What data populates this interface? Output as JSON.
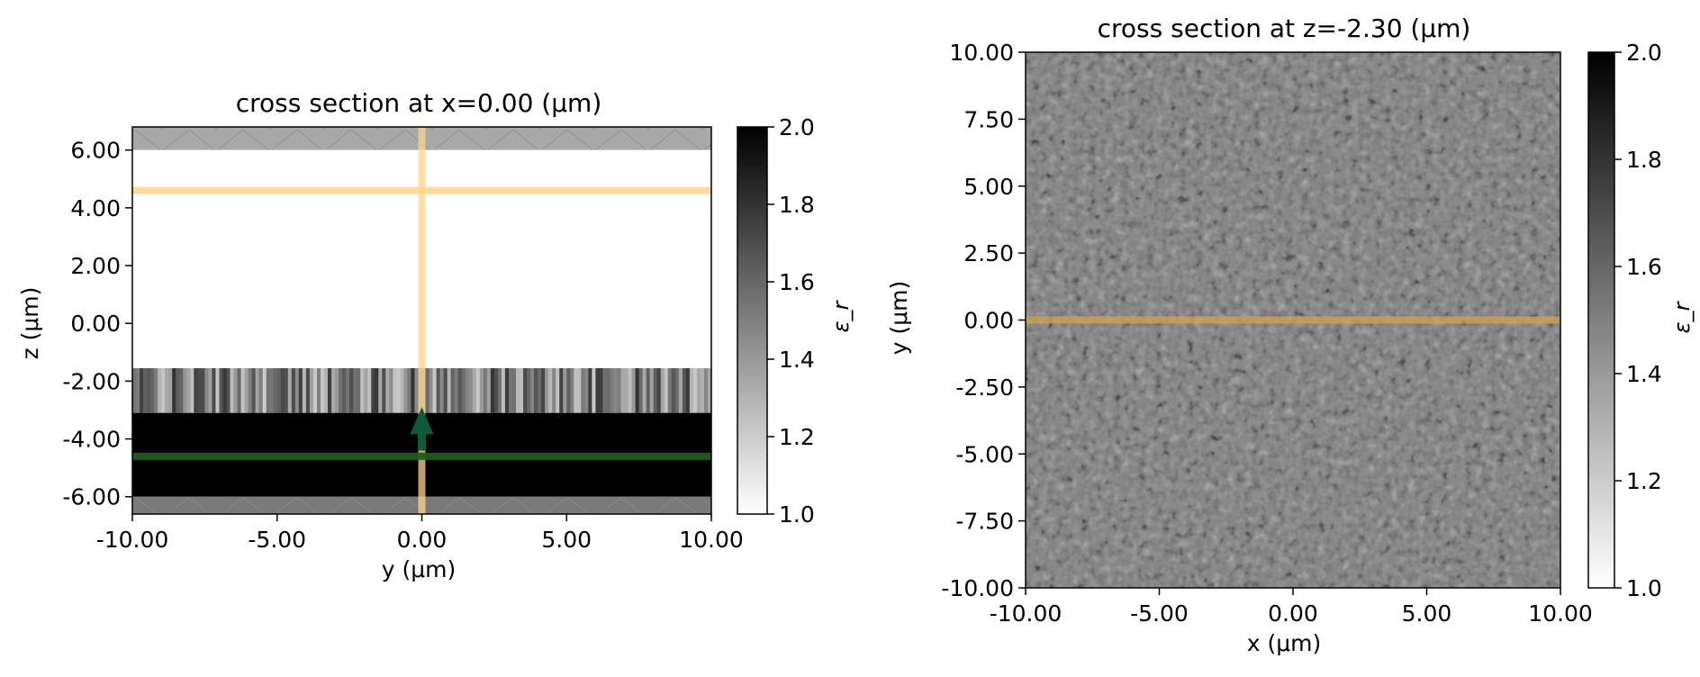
{
  "chart_data": [
    {
      "type": "heatmap",
      "title": "cross section at x=0.00 (μm)",
      "xlabel": "y (μm)",
      "ylabel": "z (μm)",
      "xlim": [
        -10.0,
        10.0
      ],
      "ylim": [
        -6.6,
        6.8
      ],
      "x_ticks": [
        -10,
        -5,
        0,
        5,
        10
      ],
      "x_tick_labels": [
        "-10.00",
        "-5.00",
        "0.00",
        "5.00",
        "10.00"
      ],
      "y_ticks": [
        6,
        4,
        2,
        0,
        -2,
        -4,
        -6
      ],
      "y_tick_labels": [
        "6.00",
        "4.00",
        "2.00",
        "0.00",
        "-2.00",
        "-4.00",
        "-6.00"
      ],
      "colorbar": {
        "label": "ε_r",
        "range": [
          1.0,
          2.0
        ],
        "ticks": [
          1.0,
          1.2,
          1.4,
          1.6,
          1.8,
          2.0
        ],
        "tick_labels": [
          "1.0",
          "1.2",
          "1.4",
          "1.6",
          "1.8",
          "2.0"
        ]
      },
      "regions": [
        {
          "name": "upper-pml",
          "z_range": [
            6.0,
            6.8
          ],
          "color": "#a8a8a8"
        },
        {
          "name": "air",
          "z_range": [
            -1.55,
            6.0
          ],
          "eps": 1.0
        },
        {
          "name": "random-layer",
          "z_range": [
            -3.1,
            -1.55
          ],
          "eps_range": [
            1.2,
            1.8
          ]
        },
        {
          "name": "substrate",
          "z_range": [
            -6.0,
            -3.1
          ],
          "eps": 2.0
        },
        {
          "name": "lower-pml",
          "z_range": [
            -6.6,
            -6.0
          ],
          "color": "#7a7a7a"
        }
      ],
      "overlays": [
        {
          "name": "monitor-horizontal",
          "orientation": "horizontal",
          "z": 4.6,
          "color": "#ffd58a"
        },
        {
          "name": "monitor-vertical",
          "orientation": "vertical",
          "y": 0.0,
          "color": "#ffd58a"
        },
        {
          "name": "source-line",
          "orientation": "horizontal",
          "z": -4.6,
          "color": "#1e5c1e"
        },
        {
          "name": "source-arrow",
          "y": 0.0,
          "z_from": -4.4,
          "z_to": -2.9,
          "color": "#0f5a3a"
        }
      ]
    },
    {
      "type": "heatmap",
      "title": "cross section at z=-2.30 (μm)",
      "xlabel": "x (μm)",
      "ylabel": "y (μm)",
      "xlim": [
        -10.0,
        10.0
      ],
      "ylim": [
        -10.0,
        10.0
      ],
      "x_ticks": [
        -10,
        -5,
        0,
        5,
        10
      ],
      "x_tick_labels": [
        "-10.00",
        "-5.00",
        "0.00",
        "5.00",
        "10.00"
      ],
      "y_ticks": [
        10,
        7.5,
        5,
        2.5,
        0,
        -2.5,
        -5,
        -7.5,
        -10
      ],
      "y_tick_labels": [
        "10.00",
        "7.50",
        "5.00",
        "2.50",
        "0.00",
        "-2.50",
        "-5.00",
        "-7.50",
        "-10.00"
      ],
      "colorbar": {
        "label": "ε_r",
        "range": [
          1.0,
          2.0
        ],
        "ticks": [
          1.2,
          1.4,
          1.6,
          1.8,
          2.0
        ],
        "tick_labels": [
          "1.2",
          "1.4",
          "1.6",
          "1.8",
          "2.0"
        ]
      },
      "eps_mean": 1.5,
      "overlays": [
        {
          "name": "monitor-line",
          "orientation": "horizontal",
          "y": 0.0,
          "color": "#d4a24c"
        }
      ]
    }
  ]
}
